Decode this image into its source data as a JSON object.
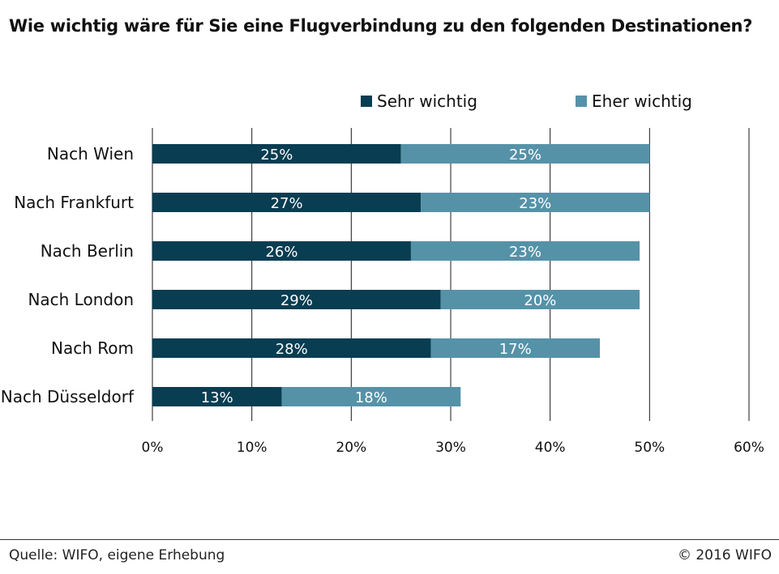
{
  "title": "Wie wichtig wäre für Sie eine Flugverbindung zu den folgenden Destinationen?",
  "source": "Quelle: WIFO, eigene Erhebung",
  "copyright": "© 2016 WIFO",
  "colors": {
    "sehr_wichtig": "#083d52",
    "eher_wichtig": "#5592a8",
    "grid": "#1a1a1a"
  },
  "chart_data": {
    "type": "bar",
    "orientation": "horizontal",
    "stacked": true,
    "categories": [
      "Nach Wien",
      "Nach Frankfurt",
      "Nach Berlin",
      "Nach London",
      "Nach Rom",
      "Nach Düsseldorf"
    ],
    "series": [
      {
        "name": "Sehr wichtig",
        "values": [
          25,
          27,
          26,
          29,
          28,
          13
        ],
        "labels": [
          "25%",
          "27%",
          "26%",
          "29%",
          "28%",
          "13%"
        ]
      },
      {
        "name": "Eher wichtig",
        "values": [
          25,
          23,
          23,
          20,
          17,
          18
        ],
        "labels": [
          "25%",
          "23%",
          "23%",
          "20%",
          "17%",
          "18%"
        ]
      }
    ],
    "xlim": [
      0,
      60
    ],
    "xticks": [
      0,
      10,
      20,
      30,
      40,
      50,
      60
    ],
    "xtick_labels": [
      "0%",
      "10%",
      "20%",
      "30%",
      "40%",
      "50%",
      "60%"
    ],
    "grid": "vertical",
    "legend_position": "top-right"
  }
}
